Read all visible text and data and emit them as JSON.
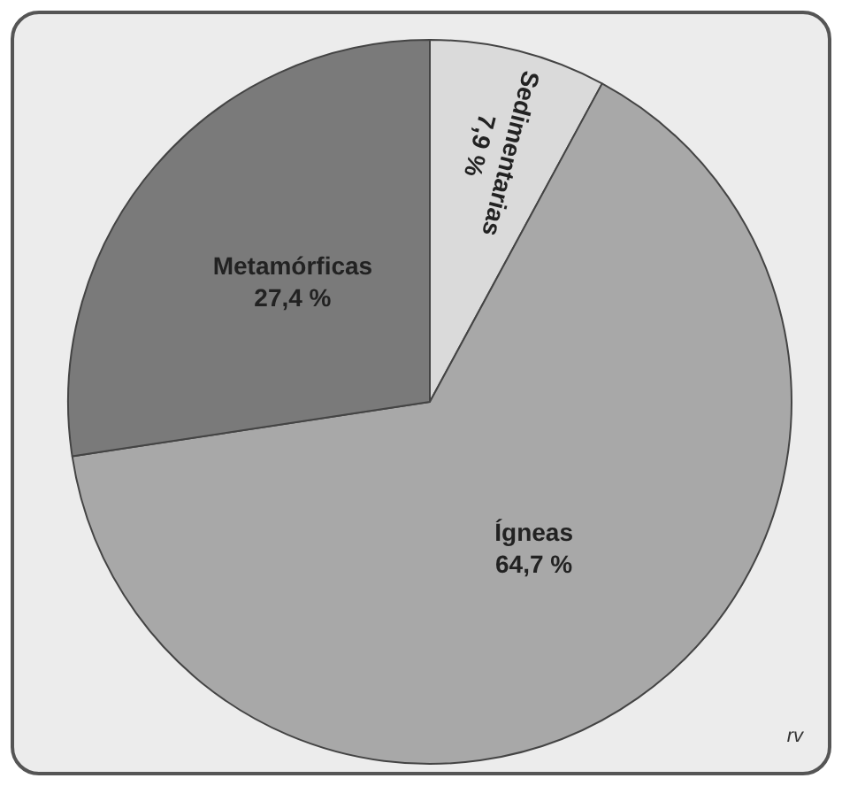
{
  "chart_data": {
    "type": "pie",
    "categories": [
      "Sedimentarias",
      "Ígneas",
      "Metamórficas"
    ],
    "values": [
      7.9,
      64.7,
      27.4
    ],
    "value_labels": [
      "7,9 %",
      "64,7 %",
      "27,4 %"
    ],
    "colors": [
      "#dadada",
      "#a8a8a8",
      "#7a7a7a"
    ],
    "legend": false,
    "annotations": [
      "rv"
    ]
  }
}
